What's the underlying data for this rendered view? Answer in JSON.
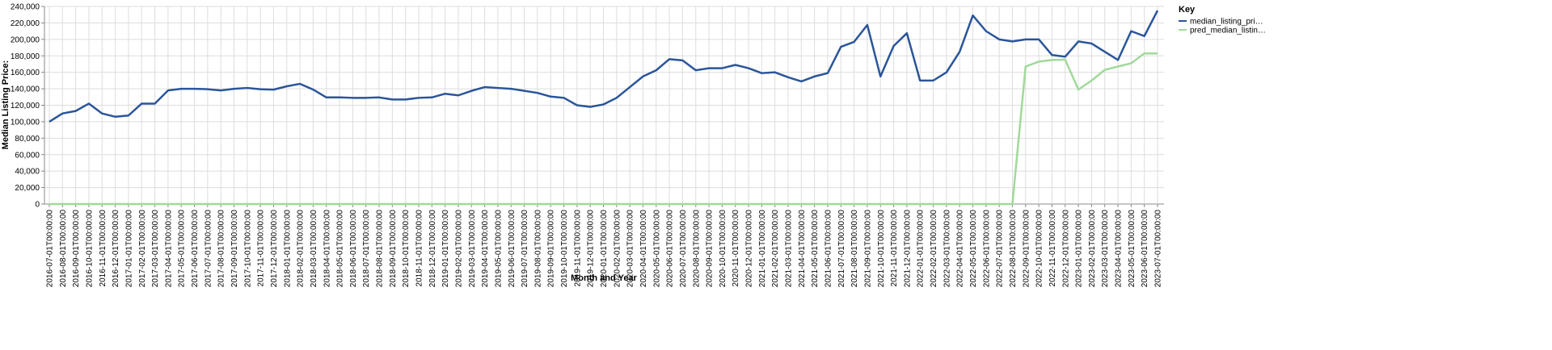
{
  "chart_data": {
    "type": "line",
    "x_label": "Month and Year",
    "y_label": "Median Listing Price:",
    "legend_title": "Key",
    "legend": "top-right",
    "grid": true,
    "categories": [
      "2016-07-01T00:00:00",
      "2016-08-01T00:00:00",
      "2016-09-01T00:00:00",
      "2016-10-01T00:00:00",
      "2016-11-01T00:00:00",
      "2016-12-01T00:00:00",
      "2017-01-01T00:00:00",
      "2017-02-01T00:00:00",
      "2017-03-01T00:00:00",
      "2017-04-01T00:00:00",
      "2017-05-01T00:00:00",
      "2017-06-01T00:00:00",
      "2017-07-01T00:00:00",
      "2017-08-01T00:00:00",
      "2017-09-01T00:00:00",
      "2017-10-01T00:00:00",
      "2017-11-01T00:00:00",
      "2017-12-01T00:00:00",
      "2018-01-01T00:00:00",
      "2018-02-01T00:00:00",
      "2018-03-01T00:00:00",
      "2018-04-01T00:00:00",
      "2018-05-01T00:00:00",
      "2018-06-01T00:00:00",
      "2018-07-01T00:00:00",
      "2018-08-01T00:00:00",
      "2018-09-01T00:00:00",
      "2018-10-01T00:00:00",
      "2018-11-01T00:00:00",
      "2018-12-01T00:00:00",
      "2019-01-01T00:00:00",
      "2019-02-01T00:00:00",
      "2019-03-01T00:00:00",
      "2019-04-01T00:00:00",
      "2019-05-01T00:00:00",
      "2019-06-01T00:00:00",
      "2019-07-01T00:00:00",
      "2019-08-01T00:00:00",
      "2019-09-01T00:00:00",
      "2019-10-01T00:00:00",
      "2019-11-01T00:00:00",
      "2019-12-01T00:00:00",
      "2020-01-01T00:00:00",
      "2020-02-01T00:00:00",
      "2020-03-01T00:00:00",
      "2020-04-01T00:00:00",
      "2020-05-01T00:00:00",
      "2020-06-01T00:00:00",
      "2020-07-01T00:00:00",
      "2020-08-01T00:00:00",
      "2020-09-01T00:00:00",
      "2020-10-01T00:00:00",
      "2020-11-01T00:00:00",
      "2020-12-01T00:00:00",
      "2021-01-01T00:00:00",
      "2021-02-01T00:00:00",
      "2021-03-01T00:00:00",
      "2021-04-01T00:00:00",
      "2021-05-01T00:00:00",
      "2021-06-01T00:00:00",
      "2021-07-01T00:00:00",
      "2021-08-01T00:00:00",
      "2021-09-01T00:00:00",
      "2021-10-01T00:00:00",
      "2021-11-01T00:00:00",
      "2021-12-01T00:00:00",
      "2022-01-01T00:00:00",
      "2022-02-01T00:00:00",
      "2022-03-01T00:00:00",
      "2022-04-01T00:00:00",
      "2022-05-01T00:00:00",
      "2022-06-01T00:00:00",
      "2022-07-01T00:00:00",
      "2022-08-01T00:00:00",
      "2022-09-01T00:00:00",
      "2022-10-01T00:00:00",
      "2022-11-01T00:00:00",
      "2022-12-01T00:00:00",
      "2023-01-01T00:00:00",
      "2023-02-01T00:00:00",
      "2023-03-01T00:00:00",
      "2023-04-01T00:00:00",
      "2023-05-01T00:00:00",
      "2023-06-01T00:00:00",
      "2023-07-01T00:00:00"
    ],
    "series": [
      {
        "name": "median_listing_pri…",
        "color": "#2a5599",
        "values": [
          100000,
          110000,
          113000,
          122000,
          110000,
          106000,
          107500,
          122000,
          122000,
          138000,
          140000,
          140000,
          139500,
          138000,
          140000,
          141000,
          139500,
          139000,
          143000,
          146000,
          139000,
          129500,
          129500,
          129000,
          129000,
          129500,
          127000,
          127000,
          129000,
          129500,
          134000,
          132000,
          137500,
          142000,
          141000,
          140000,
          137500,
          135000,
          130500,
          129000,
          120000,
          118000,
          121000,
          129000,
          142000,
          155000,
          162500,
          176000,
          174500,
          162500,
          165000,
          165000,
          169000,
          165000,
          159000,
          160000,
          154000,
          149000,
          155000,
          159000,
          191000,
          197000,
          217500,
          155000,
          192000,
          207500,
          150000,
          150000,
          160000,
          185000,
          229000,
          210000,
          200000,
          197500,
          200000,
          200000,
          181000,
          179000,
          197500,
          195000,
          185000,
          175000,
          210000,
          204000,
          235000
        ]
      },
      {
        "name": "pred_median_listin…",
        "color": "#a1d99b",
        "values": [
          0,
          0,
          0,
          0,
          0,
          0,
          0,
          0,
          0,
          0,
          0,
          0,
          0,
          0,
          0,
          0,
          0,
          0,
          0,
          0,
          0,
          0,
          0,
          0,
          0,
          0,
          0,
          0,
          0,
          0,
          0,
          0,
          0,
          0,
          0,
          0,
          0,
          0,
          0,
          0,
          0,
          0,
          0,
          0,
          0,
          0,
          0,
          0,
          0,
          0,
          0,
          0,
          0,
          0,
          0,
          0,
          0,
          0,
          0,
          0,
          0,
          0,
          0,
          0,
          0,
          0,
          0,
          0,
          0,
          0,
          0,
          0,
          0,
          0,
          167000,
          173000,
          175000,
          175500,
          139000,
          150000,
          163000,
          167000,
          171000,
          183000,
          183000
        ]
      }
    ],
    "ylim": [
      0,
      240000
    ],
    "yticks": [
      0,
      {
        "value": 20000,
        "label": "20,000"
      },
      {
        "value": 40000,
        "label": "40,000"
      },
      {
        "value": 60000,
        "label": "60,000"
      },
      {
        "value": 80000,
        "label": "80,000"
      },
      {
        "value": 100000,
        "label": "100,000"
      },
      {
        "value": 120000,
        "label": "120,000"
      },
      {
        "value": 140000,
        "label": "140,000"
      },
      {
        "value": 160000,
        "label": "160,000"
      },
      {
        "value": 180000,
        "label": "180,000"
      },
      {
        "value": 200000,
        "label": "200,000"
      },
      {
        "value": 220000,
        "label": "220,000"
      },
      {
        "value": 240000,
        "label": "240,000"
      }
    ]
  }
}
